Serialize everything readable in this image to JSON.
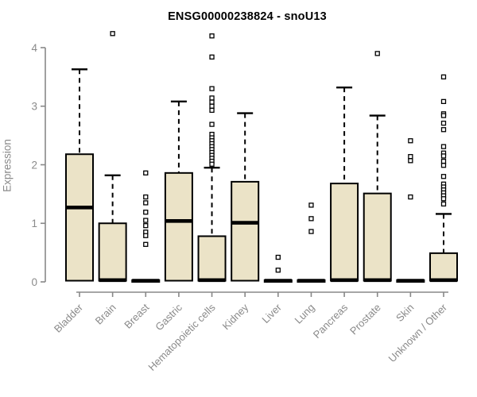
{
  "header": {
    "title": "ENSG00000238824 - snoU13"
  },
  "chart_data": {
    "type": "boxplot",
    "title": "ENSG00000238824 - snoU13",
    "xlabel": "",
    "ylabel": "Expression",
    "ylim": [
      0,
      4
    ],
    "yticks": [
      0,
      1,
      2,
      3,
      4
    ],
    "grid": false,
    "legend": "none",
    "colors": {
      "box_fill": "#EBE3C7",
      "box_stroke": "#000000",
      "axis": "#888888",
      "tick_label": "#8a8a8a",
      "title": "#000000",
      "background": "#ffffff"
    },
    "categories": [
      "Bladder",
      "Brain",
      "Breast",
      "Gastric",
      "Hematopoietic cells",
      "Kidney",
      "Liver",
      "Lung",
      "Pancreas",
      "Prostate",
      "Skin",
      "Unknown / Other"
    ],
    "series": [
      {
        "category": "Bladder",
        "whisker_low": 0,
        "q1": 0.02,
        "median": 1.27,
        "q3": 2.18,
        "whisker_high": 3.63,
        "outliers": []
      },
      {
        "category": "Brain",
        "whisker_low": 0,
        "q1": 0.02,
        "median": 0.03,
        "q3": 1.0,
        "whisker_high": 1.82,
        "outliers": [
          4.24
        ]
      },
      {
        "category": "Breast",
        "whisker_low": 0,
        "q1": 0.0,
        "median": 0.02,
        "q3": 0.03,
        "whisker_high": 0.03,
        "outliers": [
          1.86,
          1.45,
          1.35,
          1.19,
          1.05,
          0.96,
          0.85,
          0.79,
          0.64
        ]
      },
      {
        "category": "Gastric",
        "whisker_low": 0,
        "q1": 0.02,
        "median": 1.04,
        "q3": 1.86,
        "whisker_high": 3.08,
        "outliers": []
      },
      {
        "category": "Hematopoietic cells",
        "whisker_low": 0,
        "q1": 0.02,
        "median": 0.03,
        "q3": 0.78,
        "whisker_high": 1.95,
        "outliers": [
          4.2,
          3.84,
          3.3,
          3.14,
          3.07,
          3.0,
          2.93,
          2.69,
          2.52,
          2.46,
          2.41,
          2.36,
          2.31,
          2.26,
          2.21,
          2.16,
          2.11,
          2.06,
          2.01
        ]
      },
      {
        "category": "Kidney",
        "whisker_low": 0,
        "q1": 0.02,
        "median": 1.01,
        "q3": 1.71,
        "whisker_high": 2.88,
        "outliers": []
      },
      {
        "category": "Liver",
        "whisker_low": 0,
        "q1": 0.0,
        "median": 0.02,
        "q3": 0.03,
        "whisker_high": 0.03,
        "outliers": [
          0.42,
          0.2
        ]
      },
      {
        "category": "Lung",
        "whisker_low": 0,
        "q1": 0.0,
        "median": 0.02,
        "q3": 0.03,
        "whisker_high": 0.03,
        "outliers": [
          1.31,
          1.08,
          0.86
        ]
      },
      {
        "category": "Pancreas",
        "whisker_low": 0,
        "q1": 0.02,
        "median": 0.03,
        "q3": 1.68,
        "whisker_high": 3.32,
        "outliers": []
      },
      {
        "category": "Prostate",
        "whisker_low": 0,
        "q1": 0.02,
        "median": 0.03,
        "q3": 1.51,
        "whisker_high": 2.84,
        "outliers": [
          3.9
        ]
      },
      {
        "category": "Skin",
        "whisker_low": 0,
        "q1": 0.0,
        "median": 0.02,
        "q3": 0.03,
        "whisker_high": 0.03,
        "outliers": [
          2.41,
          2.14,
          2.07,
          1.45
        ]
      },
      {
        "category": "Unknown / Other",
        "whisker_low": 0,
        "q1": 0.02,
        "median": 0.03,
        "q3": 0.49,
        "whisker_high": 1.16,
        "outliers": [
          3.5,
          3.08,
          2.87,
          2.84,
          2.71,
          2.6,
          2.31,
          2.2,
          2.15,
          2.06,
          1.99,
          1.8,
          1.67,
          1.62,
          1.57,
          1.52,
          1.47,
          1.42,
          1.33
        ]
      }
    ]
  }
}
